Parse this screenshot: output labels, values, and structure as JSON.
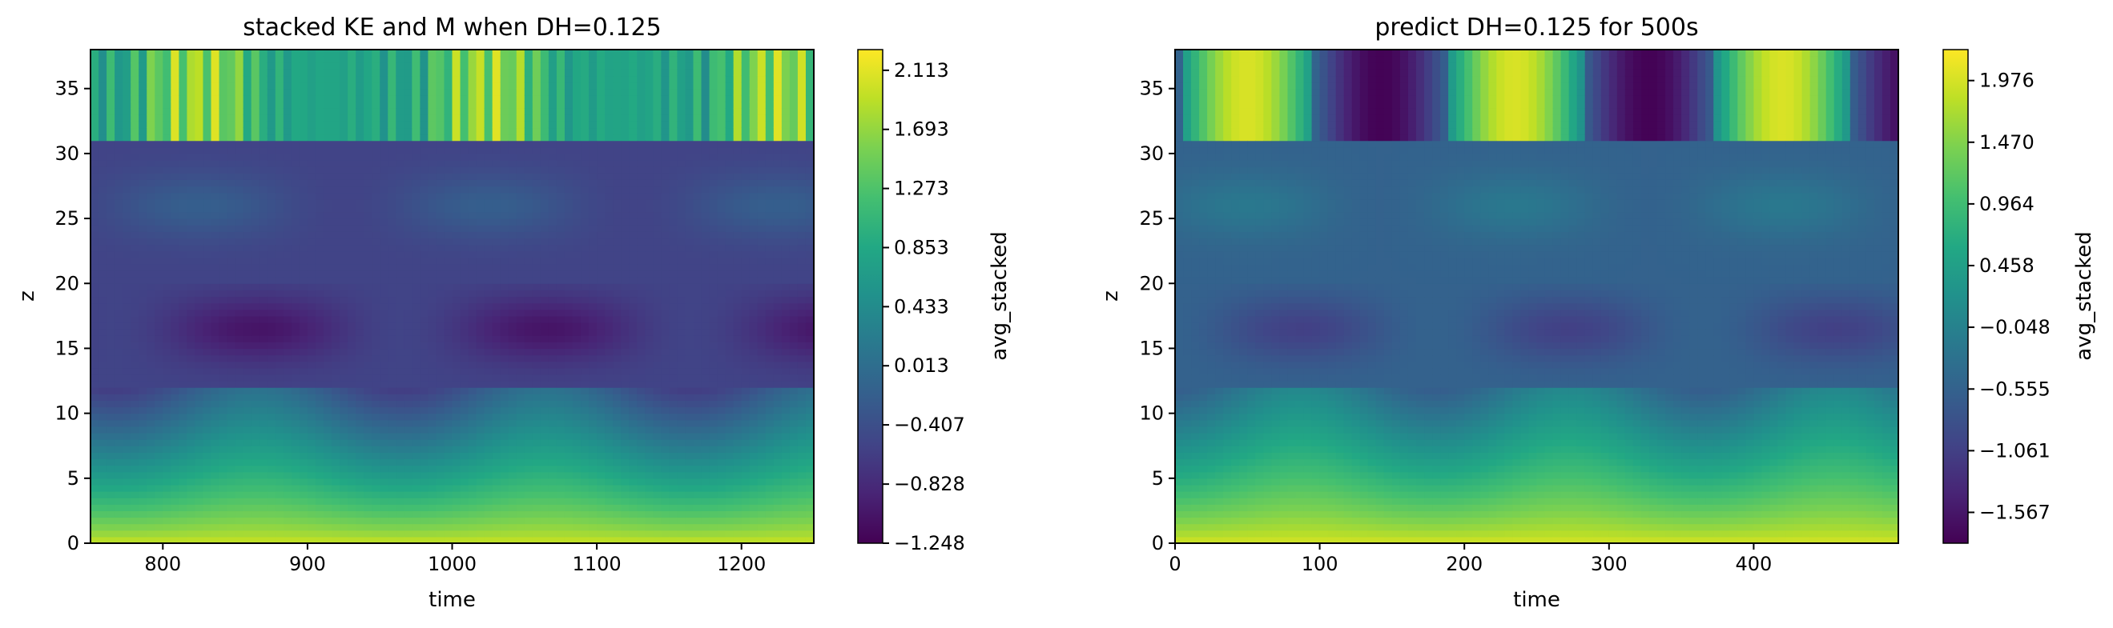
{
  "chart_data": [
    {
      "type": "heatmap",
      "title": "stacked KE and M when DH=0.125",
      "xlabel": "time",
      "ylabel": "z",
      "xlim": [
        750,
        1250
      ],
      "ylim": [
        0,
        38
      ],
      "x_ticks": [
        "800",
        "900",
        "1000",
        "1100",
        "1200"
      ],
      "x_tick_values": [
        800,
        900,
        1000,
        1100,
        1200
      ],
      "y_ticks": [
        "0",
        "5",
        "10",
        "15",
        "20",
        "25",
        "30",
        "35"
      ],
      "y_tick_values": [
        0,
        5,
        10,
        15,
        20,
        25,
        30,
        35
      ],
      "colorbar_label": "avg_stacked",
      "colorbar_range": [
        -1.248,
        2.26
      ],
      "colorbar_ticks": [
        "2.113",
        "1.693",
        "1.273",
        "0.853",
        "0.433",
        "0.013",
        "−0.407",
        "−0.828",
        "−1.248"
      ],
      "colorbar_tick_values": [
        2.113,
        1.693,
        1.273,
        0.853,
        0.433,
        0.013,
        -0.407,
        -0.828,
        -1.248
      ],
      "period": 200,
      "phase_x": 825
    },
    {
      "type": "heatmap",
      "title": "predict DH=0.125 for 500s",
      "xlabel": "time",
      "ylabel": "z",
      "xlim": [
        0,
        500
      ],
      "ylim": [
        0,
        38
      ],
      "x_ticks": [
        "0",
        "100",
        "200",
        "300",
        "400"
      ],
      "x_tick_values": [
        0,
        100,
        200,
        300,
        400
      ],
      "y_ticks": [
        "0",
        "5",
        "10",
        "15",
        "20",
        "25",
        "30",
        "35"
      ],
      "y_tick_values": [
        0,
        5,
        10,
        15,
        20,
        25,
        30,
        35
      ],
      "colorbar_label": "avg_stacked",
      "colorbar_range": [
        -1.82,
        2.23
      ],
      "colorbar_ticks": [
        "1.976",
        "1.470",
        "0.964",
        "0.458",
        "−0.048",
        "−0.555",
        "−1.061",
        "−1.567"
      ],
      "colorbar_tick_values": [
        1.976,
        1.47,
        0.964,
        0.458,
        -0.048,
        -0.555,
        -1.061,
        -1.567
      ],
      "period": 185,
      "phase_x": 50
    }
  ]
}
